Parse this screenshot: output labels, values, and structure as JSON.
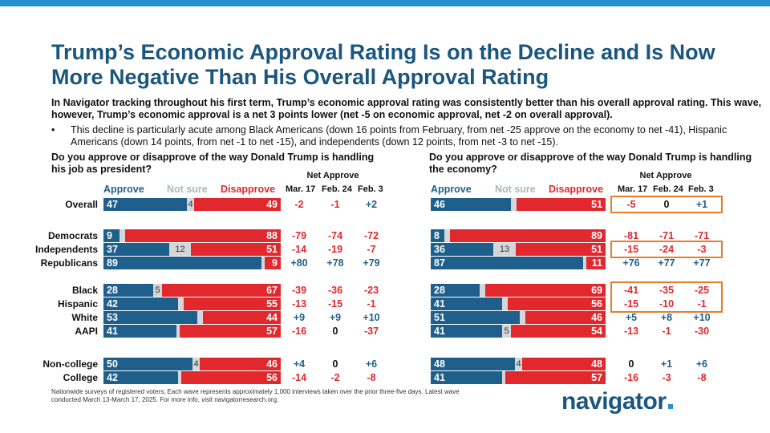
{
  "title": "Trump’s Economic Approval Rating Is on the Decline and Is Now More Negative Than His Overall Approval Rating",
  "intro": "In Navigator tracking throughout his first term, Trump’s economic approval rating was consistently better than his overall approval rating. This wave, however, Trump’s economic approval is a net 3 points lower (net -5 on economic approval, net -2 on overall approval).",
  "bullet_marker": "•",
  "bullet": "This decline is particularly acute among Black Americans (down 16 points from February, from net -25 approve on the economy to net -41), Hispanic Americans (down 14 points, from net -1 to net -15), and independents (down 12 points, from net -3 to net -15).",
  "footnote": "Nationwide surveys of registered voters; Each wave represents approximately 1,000 interviews taken over the prior three-five days. Latest wave conducted March 13-March 17, 2025. For more info, visit navigatorresearch.org.",
  "logo": "navigator",
  "colors": {
    "approve": "#1f5f8b",
    "not_sure": "#d4d7da",
    "disapprove": "#e0282d",
    "title": "#1a567e",
    "highlight": "#e77d2a",
    "topbar": "#2a8fd0"
  },
  "chart_data": [
    {
      "type": "bar",
      "subtype": "stacked-horizontal",
      "title": "Do you approve or disapprove of the way Donald Trump is handling his job as president?",
      "legend": [
        "Approve",
        "Not sure",
        "Disapprove"
      ],
      "net_header": "Net Approve",
      "net_columns": [
        "Mar. 17",
        "Feb. 24",
        "Feb. 3"
      ],
      "rows": [
        {
          "label": "Overall",
          "approve": 47,
          "not_sure": 4,
          "disapprove": 49,
          "net": [
            "-2",
            "-1",
            "+2"
          ]
        },
        {
          "label": "Democrats",
          "approve": 9,
          "not_sure": 3,
          "disapprove": 88,
          "net": [
            "-79",
            "-74",
            "-72"
          ]
        },
        {
          "label": "Independents",
          "approve": 37,
          "not_sure": 12,
          "disapprove": 51,
          "net": [
            "-14",
            "-19",
            "-7"
          ]
        },
        {
          "label": "Republicans",
          "approve": 89,
          "not_sure": 2,
          "disapprove": 9,
          "net": [
            "+80",
            "+78",
            "+79"
          ]
        },
        {
          "label": "Black",
          "approve": 28,
          "not_sure": 5,
          "disapprove": 67,
          "net": [
            "-39",
            "-36",
            "-23"
          ]
        },
        {
          "label": "Hispanic",
          "approve": 42,
          "not_sure": 3,
          "disapprove": 55,
          "net": [
            "-13",
            "-15",
            "-1"
          ]
        },
        {
          "label": "White",
          "approve": 53,
          "not_sure": 3,
          "disapprove": 44,
          "net": [
            "+9",
            "+9",
            "+10"
          ]
        },
        {
          "label": "AAPI",
          "approve": 41,
          "not_sure": 2,
          "disapprove": 57,
          "net": [
            "-16",
            "0",
            "-37"
          ]
        },
        {
          "label": "Non-college",
          "approve": 50,
          "not_sure": 4,
          "disapprove": 46,
          "net": [
            "+4",
            "0",
            "+6"
          ]
        },
        {
          "label": "College",
          "approve": 42,
          "not_sure": 2,
          "disapprove": 56,
          "net": [
            "-14",
            "-2",
            "-8"
          ]
        }
      ]
    },
    {
      "type": "bar",
      "subtype": "stacked-horizontal",
      "title": "Do you approve or disapprove of the way Donald Trump is handling the economy?",
      "legend": [
        "Approve",
        "Not sure",
        "Disapprove"
      ],
      "net_header": "Net Approve",
      "net_columns": [
        "Mar. 17",
        "Feb. 24",
        "Feb. 3"
      ],
      "rows": [
        {
          "label": "Overall",
          "approve": 46,
          "not_sure": 3,
          "disapprove": 51,
          "net": [
            "-5",
            "0",
            "+1"
          ]
        },
        {
          "label": "Democrats",
          "approve": 8,
          "not_sure": 3,
          "disapprove": 89,
          "net": [
            "-81",
            "-71",
            "-71"
          ]
        },
        {
          "label": "Independents",
          "approve": 36,
          "not_sure": 13,
          "disapprove": 51,
          "net": [
            "-15",
            "-24",
            "-3"
          ]
        },
        {
          "label": "Republicans",
          "approve": 87,
          "not_sure": 2,
          "disapprove": 11,
          "net": [
            "+76",
            "+77",
            "+77"
          ]
        },
        {
          "label": "Black",
          "approve": 28,
          "not_sure": 3,
          "disapprove": 69,
          "net": [
            "-41",
            "-35",
            "-25"
          ]
        },
        {
          "label": "Hispanic",
          "approve": 41,
          "not_sure": 3,
          "disapprove": 56,
          "net": [
            "-15",
            "-10",
            "-1"
          ]
        },
        {
          "label": "White",
          "approve": 51,
          "not_sure": 3,
          "disapprove": 46,
          "net": [
            "+5",
            "+8",
            "+10"
          ]
        },
        {
          "label": "AAPI",
          "approve": 41,
          "not_sure": 5,
          "disapprove": 54,
          "net": [
            "-13",
            "-1",
            "-30"
          ]
        },
        {
          "label": "Non-college",
          "approve": 48,
          "not_sure": 4,
          "disapprove": 48,
          "net": [
            "0",
            "+1",
            "+6"
          ]
        },
        {
          "label": "College",
          "approve": 41,
          "not_sure": 2,
          "disapprove": 57,
          "net": [
            "-16",
            "-3",
            "-8"
          ]
        }
      ],
      "highlighted_rows": [
        "Overall",
        "Independents",
        "Black",
        "Hispanic"
      ]
    }
  ]
}
